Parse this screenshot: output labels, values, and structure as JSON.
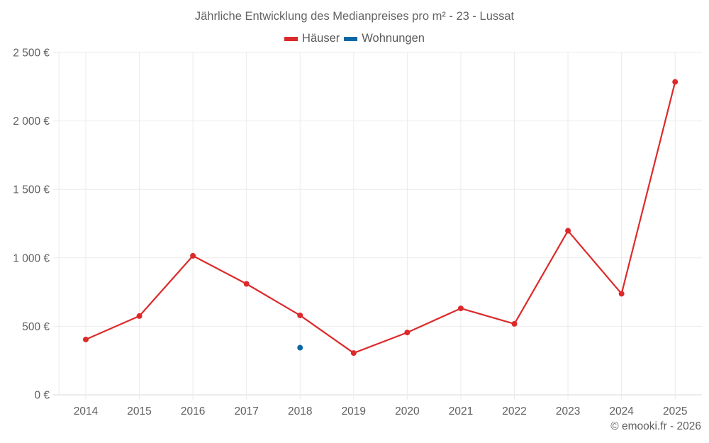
{
  "chart_data": {
    "type": "line",
    "title": "Jährliche Entwicklung des Medianpreises pro m² - 23 - Lussat",
    "xlabel": "",
    "ylabel": "",
    "categories": [
      "2014",
      "2015",
      "2016",
      "2017",
      "2018",
      "2019",
      "2020",
      "2021",
      "2022",
      "2023",
      "2024",
      "2025"
    ],
    "series": [
      {
        "name": "Häuser",
        "color": "#dc2a2a",
        "values": [
          404,
          575,
          1015,
          810,
          580,
          305,
          455,
          631,
          518,
          1198,
          738,
          2285
        ]
      },
      {
        "name": "Wohnungen",
        "color": "#0a68a6",
        "values": [
          null,
          null,
          null,
          null,
          344,
          null,
          null,
          null,
          null,
          null,
          null,
          null
        ]
      }
    ],
    "ylim": [
      0,
      2500
    ],
    "yticks": [
      0,
      500,
      1000,
      1500,
      2000,
      2500
    ],
    "ytick_labels": [
      "0 €",
      "500 €",
      "1 000 €",
      "1 500 €",
      "2 000 €",
      "2 500 €"
    ],
    "grid": true,
    "legend_position": "top-center"
  },
  "header": {
    "title": "Jährliche Entwicklung des Medianpreises pro m² - 23 - Lussat"
  },
  "legend": {
    "items": [
      {
        "label": "Häuser",
        "color": "#dc2a2a"
      },
      {
        "label": "Wohnungen",
        "color": "#0a68a6"
      }
    ]
  },
  "footer": {
    "credit": "© emooki.fr - 2026"
  },
  "colors": {
    "grid": "#ebebeb",
    "axis": "#d9d9d9",
    "text": "#5f5f5f"
  }
}
